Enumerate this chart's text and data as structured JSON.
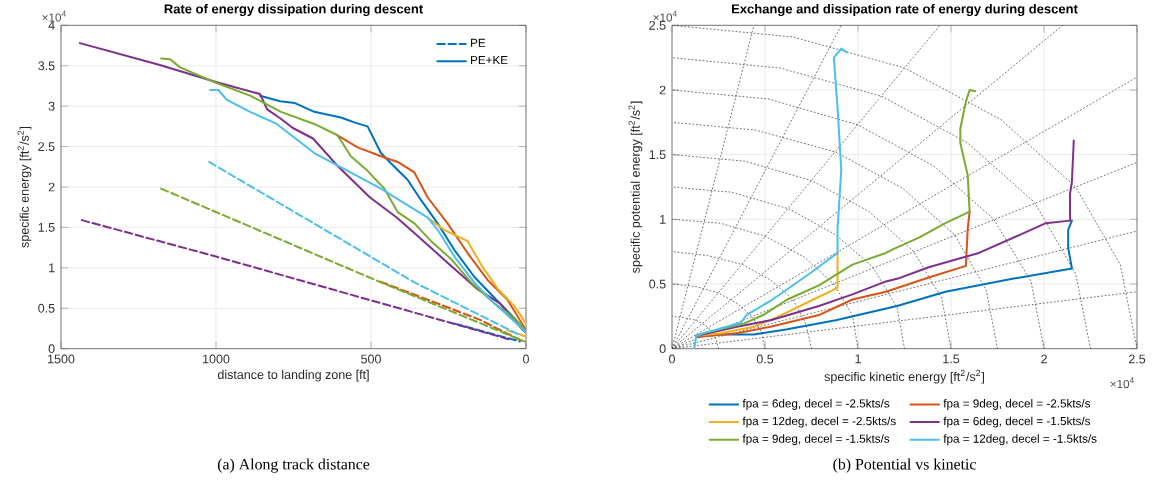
{
  "chart_data": [
    {
      "type": "line",
      "title": "Rate of energy dissipation during descent",
      "xlabel": "distance to landing zone [ft]",
      "ylabel": "specific energy [ft$^{2}$/s$^{2}$]",
      "annotations": [
        "×10$^{4}$",
        "(a)  Along track distance"
      ],
      "xlim": [
        1500,
        0
      ],
      "xticks": [
        1500,
        1000,
        500,
        0
      ],
      "ylim": [
        0,
        4
      ],
      "yticks": [
        0,
        0.5,
        1,
        1.5,
        2,
        2.5,
        3,
        3.5,
        4
      ],
      "grid": true,
      "legend": "top right",
      "series": [
        {
          "name": "PE",
          "color": "#0072bd",
          "line_style": "dashed",
          "x": [
            230,
            20
          ],
          "values": [
            0.31,
            0.09
          ]
        },
        {
          "name": "PE+KE",
          "color": "#0072bd",
          "line_style": "solid",
          "x": [
            858,
            793,
            747,
            683,
            597,
            554,
            511,
            468,
            435,
            382,
            339,
            285,
            231,
            167,
            102,
            38,
            0
          ],
          "values": [
            3.13,
            3.06,
            3.04,
            2.93,
            2.86,
            2.8,
            2.75,
            2.42,
            2.29,
            2.09,
            1.84,
            1.55,
            1.22,
            0.89,
            0.63,
            0.38,
            0.2
          ]
        },
        {
          "color": "#d95319",
          "line_style": "dashed",
          "x": [
            470,
            150,
            10
          ],
          "values": [
            0.83,
            0.36,
            0.09
          ]
        },
        {
          "color": "#d95319",
          "line_style": "solid",
          "x": [
            608,
            543,
            468,
            414,
            360,
            317,
            253,
            188,
            124,
            59,
            0
          ],
          "values": [
            2.64,
            2.49,
            2.38,
            2.31,
            2.18,
            1.87,
            1.55,
            1.18,
            0.85,
            0.6,
            0.23
          ]
        },
        {
          "color": "#edb120",
          "line_style": "dashed",
          "x": [
            60,
            0
          ],
          "values": [
            0.23,
            0.15
          ]
        },
        {
          "color": "#edb120",
          "line_style": "solid",
          "x": [
            317,
            264,
            188,
            145,
            91,
            38,
            0
          ],
          "values": [
            1.62,
            1.47,
            1.33,
            1.04,
            0.74,
            0.53,
            0.31
          ]
        },
        {
          "color": "#7e2f8e",
          "line_style": "dashed",
          "x": [
            1433,
            1000,
            50
          ],
          "values": [
            1.59,
            1.14,
            0.11
          ]
        },
        {
          "color": "#7e2f8e",
          "line_style": "solid",
          "x": [
            1439,
            1181,
            1000,
            858,
            835,
            793,
            752,
            687,
            610,
            503,
            416,
            342,
            255,
            158,
            84,
            10,
            0
          ],
          "values": [
            3.78,
            3.51,
            3.3,
            3.15,
            2.96,
            2.85,
            2.73,
            2.6,
            2.27,
            1.87,
            1.62,
            1.37,
            1.07,
            0.74,
            0.56,
            0.23,
            0.2
          ]
        },
        {
          "color": "#77ac30",
          "line_style": "dashed",
          "x": [
            1177,
            468,
            5
          ],
          "values": [
            1.98,
            0.82,
            0.09
          ]
        },
        {
          "color": "#77ac30",
          "line_style": "solid",
          "x": [
            1177,
            1148,
            1116,
            1000,
            890,
            790,
            683,
            608,
            565,
            511,
            457,
            414,
            360,
            306,
            242,
            177,
            102,
            38,
            0
          ],
          "values": [
            3.59,
            3.58,
            3.48,
            3.29,
            3.13,
            2.93,
            2.78,
            2.64,
            2.38,
            2.2,
            1.98,
            1.69,
            1.55,
            1.33,
            1.11,
            0.82,
            0.56,
            0.38,
            0.22
          ]
        },
        {
          "color": "#4dbeee",
          "line_style": "dashed",
          "x": [
            1022,
            360,
            16
          ],
          "values": [
            2.31,
            0.82,
            0.16
          ]
        },
        {
          "color": "#4dbeee",
          "line_style": "solid",
          "x": [
            1019,
            992,
            966,
            890,
            804,
            683,
            575,
            468,
            393,
            317,
            285,
            231,
            167,
            102,
            38,
            0
          ],
          "values": [
            3.2,
            3.2,
            3.08,
            2.93,
            2.78,
            2.42,
            2.2,
            1.98,
            1.8,
            1.62,
            1.47,
            1.14,
            0.82,
            0.56,
            0.34,
            0.2
          ]
        }
      ]
    },
    {
      "type": "line",
      "title": "Exchange and dissipation rate of energy during descent",
      "xlabel": "specific kinetic energy [ft$^{2}$/s$^{2}$]",
      "ylabel": "specific potential energy [ft$^{2}$/s$^{2}$]",
      "annotations": [
        "×10$^{4}$",
        "×10$^{4}$",
        "(b)  Potential vs kinetic"
      ],
      "xlim": [
        0,
        2.5
      ],
      "xticks": [
        0,
        0.5,
        1,
        1.5,
        2,
        2.5
      ],
      "ylim": [
        0,
        2.5
      ],
      "yticks": [
        0,
        0.5,
        1,
        1.5,
        2,
        2.5
      ],
      "grid": true,
      "legend": "bottom",
      "series": [
        {
          "color": "#404040",
          "line_style": "dotted",
          "x": [
            0.25,
            0.24,
            0.22,
            0.18,
            0.13,
            0.06,
            0
          ],
          "values": [
            0,
            0.06,
            0.13,
            0.18,
            0.22,
            0.24,
            0.25
          ]
        },
        {
          "color": "#404040",
          "line_style": "dotted",
          "x": [
            0.5,
            0.48,
            0.43,
            0.35,
            0.25,
            0.13,
            0
          ],
          "values": [
            0,
            0.13,
            0.25,
            0.35,
            0.43,
            0.48,
            0.5
          ]
        },
        {
          "color": "#404040",
          "line_style": "dotted",
          "x": [
            0.75,
            0.72,
            0.65,
            0.53,
            0.38,
            0.19,
            0
          ],
          "values": [
            0,
            0.19,
            0.38,
            0.53,
            0.65,
            0.72,
            0.75
          ]
        },
        {
          "color": "#404040",
          "line_style": "dotted",
          "x": [
            1,
            0.97,
            0.87,
            0.71,
            0.5,
            0.26,
            0
          ],
          "values": [
            0,
            0.26,
            0.5,
            0.71,
            0.87,
            0.97,
            1
          ]
        },
        {
          "color": "#404040",
          "line_style": "dotted",
          "x": [
            1.25,
            1.21,
            1.08,
            0.88,
            0.63,
            0.32,
            0
          ],
          "values": [
            0,
            0.32,
            0.63,
            0.88,
            1.08,
            1.21,
            1.25
          ]
        },
        {
          "color": "#404040",
          "line_style": "dotted",
          "x": [
            1.5,
            1.45,
            1.3,
            1.06,
            0.75,
            0.39,
            0
          ],
          "values": [
            0,
            0.39,
            0.75,
            1.06,
            1.3,
            1.45,
            1.5
          ]
        },
        {
          "color": "#404040",
          "line_style": "dotted",
          "x": [
            1.75,
            1.69,
            1.52,
            1.24,
            0.88,
            0.45,
            0
          ],
          "values": [
            0,
            0.45,
            0.88,
            1.24,
            1.52,
            1.69,
            1.75
          ]
        },
        {
          "color": "#404040",
          "line_style": "dotted",
          "x": [
            2,
            1.93,
            1.73,
            1.41,
            1,
            0.52,
            0
          ],
          "values": [
            0,
            0.52,
            1,
            1.41,
            1.73,
            1.93,
            2
          ]
        },
        {
          "color": "#404040",
          "line_style": "dotted",
          "x": [
            2.25,
            2.17,
            1.95,
            1.59,
            1.13,
            0.58,
            0
          ],
          "values": [
            0,
            0.58,
            1.13,
            1.59,
            1.95,
            2.17,
            2.25
          ]
        },
        {
          "color": "#404040",
          "line_style": "dotted",
          "x": [
            2.5,
            2.41,
            2.17,
            1.77,
            1.25,
            0.65,
            0
          ],
          "values": [
            0,
            0.65,
            1.25,
            1.77,
            2.17,
            2.41,
            2.5
          ]
        },
        {
          "color": "#404040",
          "line_style": "dotted",
          "x": [
            0,
            2.5
          ],
          "values": [
            0,
            0.44
          ]
        },
        {
          "color": "#404040",
          "line_style": "dotted",
          "x": [
            0,
            2.5
          ],
          "values": [
            0,
            0.91
          ]
        },
        {
          "color": "#404040",
          "line_style": "dotted",
          "x": [
            0,
            2.5
          ],
          "values": [
            0,
            1.44
          ]
        },
        {
          "color": "#404040",
          "line_style": "dotted",
          "x": [
            0,
            2.5
          ],
          "values": [
            0,
            2.1
          ]
        },
        {
          "color": "#404040",
          "line_style": "dotted",
          "x": [
            0,
            2.1
          ],
          "values": [
            0,
            2.5
          ]
        },
        {
          "color": "#404040",
          "line_style": "dotted",
          "x": [
            0,
            1.44
          ],
          "values": [
            0,
            2.5
          ]
        },
        {
          "color": "#404040",
          "line_style": "dotted",
          "x": [
            0,
            0.91
          ],
          "values": [
            0,
            2.5
          ]
        },
        {
          "color": "#404040",
          "line_style": "dotted",
          "x": [
            0,
            0.44
          ],
          "values": [
            0,
            2.5
          ]
        },
        {
          "name": "fpa = 6deg, decel = -2.5kts/s",
          "color": "#0072bd",
          "line_style": "solid",
          "x": [
            2.15,
            2.13,
            2.13,
            2.15,
            1.99,
            1.83,
            1.47,
            1.21,
            0.88,
            0.62,
            0.44,
            0.26,
            0.13
          ],
          "values": [
            0.99,
            0.92,
            0.78,
            0.62,
            0.58,
            0.54,
            0.44,
            0.33,
            0.22,
            0.15,
            0.11,
            0.11,
            0.09
          ]
        },
        {
          "name": "fpa = 9deg, decel = -2.5kts/s",
          "color": "#d95319",
          "line_style": "solid",
          "x": [
            1.6,
            1.59,
            1.58,
            1.38,
            1.15,
            0.97,
            0.79,
            0.53,
            0.35,
            0.13
          ],
          "values": [
            1.06,
            0.93,
            0.64,
            0.55,
            0.44,
            0.38,
            0.26,
            0.17,
            0.12,
            0.09
          ]
        },
        {
          "name": "fpa = 12deg, decel = -2.5kts/s",
          "color": "#edb120",
          "line_style": "solid",
          "x": [
            0.89,
            0.89,
            0.76,
            0.56,
            0.44,
            0.26,
            0.13
          ],
          "values": [
            0.74,
            0.47,
            0.38,
            0.24,
            0.17,
            0.12,
            0.1
          ]
        },
        {
          "name": "fpa = 6deg, decel = -1.5kts/s",
          "color": "#7e2f8e",
          "line_style": "solid",
          "x": [
            2.16,
            2.15,
            2.14,
            2.14,
            2.01,
            1.87,
            1.65,
            1.38,
            1.21,
            1.15,
            0.97,
            0.79,
            0.53,
            0.35,
            0.13
          ],
          "values": [
            1.61,
            1.29,
            1.2,
            0.99,
            0.97,
            0.88,
            0.74,
            0.63,
            0.54,
            0.52,
            0.42,
            0.33,
            0.22,
            0.17,
            0.1
          ]
        },
        {
          "name": "fpa = 9deg, decel = -1.5kts/s",
          "color": "#77ac30",
          "line_style": "solid",
          "x": [
            1.63,
            1.6,
            1.58,
            1.55,
            1.55,
            1.59,
            1.6,
            1.47,
            1.33,
            1.19,
            1.15,
            0.97,
            0.79,
            0.62,
            0.49,
            0.38,
            0.17,
            0.13
          ],
          "values": [
            1.99,
            2.0,
            1.91,
            1.7,
            1.59,
            1.34,
            1.06,
            0.97,
            0.86,
            0.77,
            0.74,
            0.65,
            0.49,
            0.38,
            0.26,
            0.19,
            0.12,
            0.1
          ]
        },
        {
          "name": "fpa = 12deg, decel = -1.5kts/s",
          "color": "#4dbeee",
          "line_style": "solid",
          "x": [
            0.94,
            0.91,
            0.87,
            0.89,
            0.91,
            0.89,
            0.89,
            0.72,
            0.54,
            0.4,
            0.37,
            0.17,
            0.13,
            0.12
          ],
          "values": [
            2.29,
            2.32,
            2.25,
            1.86,
            1.38,
            0.93,
            0.74,
            0.56,
            0.38,
            0.26,
            0.2,
            0.12,
            0.1,
            0
          ]
        }
      ]
    }
  ]
}
